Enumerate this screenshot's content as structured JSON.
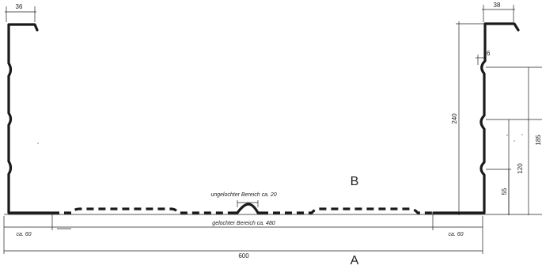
{
  "dimensions": {
    "left_flange": "36",
    "right_flange": "38",
    "bead": "6",
    "height_total": "240",
    "height_185": "185",
    "height_120": "120",
    "height_55": "55",
    "width_total": "600",
    "edge_left": "ca. 60",
    "edge_right": "ca. 60"
  },
  "labels": {
    "unperforated": "ungelochter Bereich ca. 20",
    "perforated": "gelochter Bereich ca. 480",
    "marker_a": "A",
    "marker_b": "B"
  }
}
